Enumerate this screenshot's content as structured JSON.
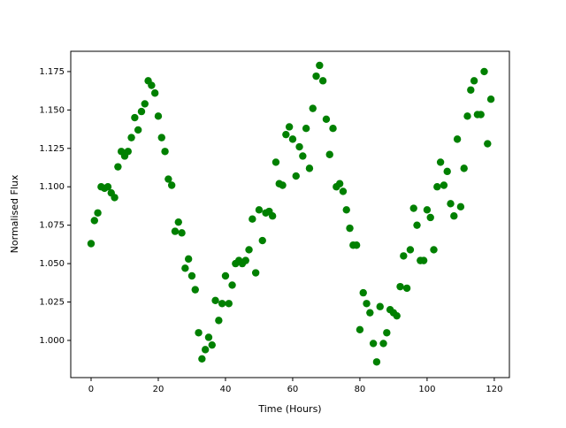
{
  "chart_data": {
    "type": "scatter",
    "xlabel": "Time (Hours)",
    "ylabel": "Normalised Flux",
    "color": "#008000",
    "x": [
      0,
      1,
      2,
      3,
      4,
      5,
      6,
      7,
      8,
      9,
      10,
      11,
      12,
      13,
      14,
      15,
      16,
      17,
      18,
      19,
      20,
      21,
      22,
      23,
      24,
      25,
      26,
      27,
      28,
      29,
      30,
      31,
      32,
      33,
      34,
      35,
      36,
      37,
      38,
      39,
      40,
      41,
      42,
      43,
      44,
      45,
      46,
      47,
      48,
      49,
      50,
      51,
      52,
      53,
      54,
      55,
      56,
      57,
      58,
      59,
      60,
      61,
      62,
      63,
      64,
      65,
      66,
      67,
      68,
      69,
      70,
      71,
      72,
      73,
      74,
      75,
      76,
      77,
      78,
      79,
      80,
      81,
      82,
      83,
      84,
      85,
      86,
      87,
      88,
      89,
      90,
      91,
      92,
      93,
      94,
      95,
      96,
      97,
      98,
      99,
      100,
      101,
      102,
      103,
      104,
      105,
      106,
      107,
      108,
      109,
      110,
      111,
      112,
      113,
      114,
      115,
      116,
      117,
      118,
      119
    ],
    "y": [
      1.063,
      1.078,
      1.083,
      1.1,
      1.099,
      1.1,
      1.096,
      1.093,
      1.113,
      1.123,
      1.12,
      1.123,
      1.132,
      1.145,
      1.137,
      1.149,
      1.154,
      1.169,
      1.166,
      1.161,
      1.146,
      1.132,
      1.123,
      1.105,
      1.101,
      1.071,
      1.077,
      1.07,
      1.047,
      1.053,
      1.042,
      1.033,
      1.005,
      0.988,
      0.994,
      1.002,
      0.997,
      1.026,
      1.013,
      1.024,
      1.042,
      1.024,
      1.036,
      1.05,
      1.052,
      1.05,
      1.052,
      1.059,
      1.079,
      1.044,
      1.085,
      1.065,
      1.083,
      1.084,
      1.081,
      1.116,
      1.102,
      1.101,
      1.134,
      1.139,
      1.131,
      1.107,
      1.126,
      1.12,
      1.138,
      1.112,
      1.151,
      1.172,
      1.179,
      1.169,
      1.144,
      1.121,
      1.138,
      1.1,
      1.102,
      1.097,
      1.085,
      1.073,
      1.062,
      1.062,
      1.007,
      1.031,
      1.024,
      1.018,
      0.998,
      0.986,
      1.022,
      0.998,
      1.005,
      1.02,
      1.018,
      1.016,
      1.035,
      1.055,
      1.034,
      1.059,
      1.086,
      1.075,
      1.052,
      1.052,
      1.085,
      1.08,
      1.059,
      1.1,
      1.116,
      1.101,
      1.11,
      1.089,
      1.081,
      1.131,
      1.087,
      1.112,
      1.146,
      1.163,
      1.169,
      1.147,
      1.147,
      1.175,
      1.128,
      1.157
    ],
    "xlim": [
      -6.05,
      124.5
    ],
    "ylim": [
      0.9758,
      1.1882
    ],
    "xticks": [
      0,
      20,
      40,
      60,
      80,
      100,
      120
    ],
    "yticks": [
      {
        "value": 1,
        "label": "1.000"
      },
      1.025,
      {
        "value": 1.05,
        "label": "1.050"
      },
      1.075,
      {
        "value": 1.1,
        "label": "1.100"
      },
      1.125,
      {
        "value": 1.15,
        "label": "1.150"
      },
      1.175
    ]
  }
}
